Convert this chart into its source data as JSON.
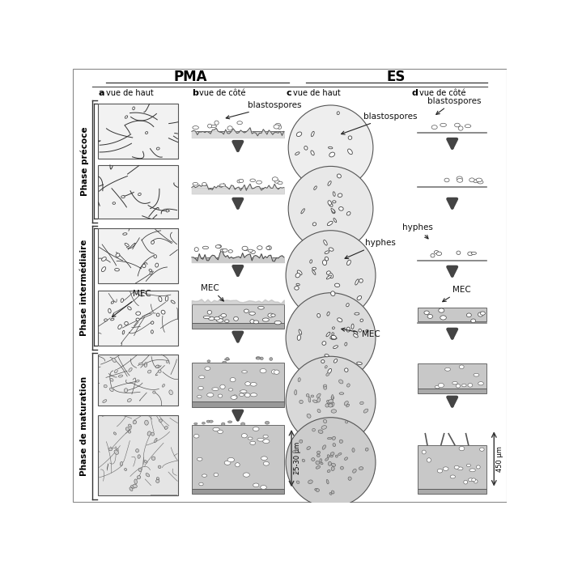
{
  "PMA_label": "PMA",
  "ES_label": "ES",
  "col_a_label": "vue de haut",
  "col_b_label": "vue de côté",
  "col_c_label": "vue de haut",
  "col_d_label": "vue de côté",
  "phase1_label": "Phase précoce",
  "phase2_label": "Phase intermédiaire",
  "phase3_label": "Phase de maturation",
  "ann_blasto1": "blastospores",
  "ann_blasto2": "blastospores",
  "ann_hyphes": "hyphes",
  "ann_mec1": "MEC",
  "ann_mec2": "MEC",
  "scale1": "25-30 μm",
  "scale2": "450 μm",
  "letter_a": "a",
  "letter_b": "b",
  "letter_c": "c",
  "letter_d": "d",
  "bg": "#ffffff",
  "box_fc": "#f2f2f2",
  "circle_fc": "#eeeeee",
  "arrow_fc": "#444444",
  "line_c": "#333333",
  "cell_ec": "#444444",
  "text_c": "#111111",
  "substrate_c": "#c8c8c8",
  "bio_c": "#d8d8d8"
}
